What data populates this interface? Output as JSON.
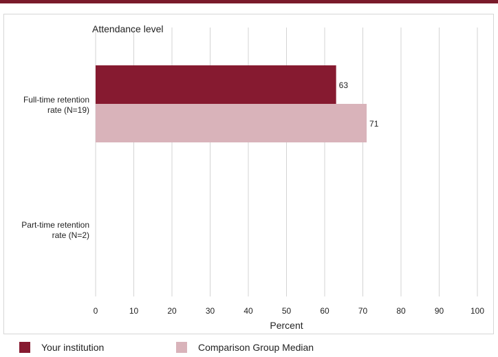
{
  "chart_data": {
    "type": "bar",
    "orientation": "horizontal",
    "title": "Attendance level",
    "xlabel": "Percent",
    "ylabel": "",
    "categories": [
      "Full-time retention rate (N=19)",
      "Part-time retention rate (N=2)"
    ],
    "category_lines": [
      [
        "Full-time retention",
        "rate (N=19)"
      ],
      [
        "Part-time retention",
        "rate (N=2)"
      ]
    ],
    "series": [
      {
        "name": "Your institution",
        "values": [
          63,
          null
        ],
        "color": "#861a30"
      },
      {
        "name": "Comparison Group Median",
        "values": [
          71,
          null
        ],
        "color": "#d9b3ba"
      }
    ],
    "xlim": [
      0,
      100
    ],
    "xticks": [
      0,
      10,
      20,
      30,
      40,
      50,
      60,
      70,
      80,
      90,
      100
    ],
    "grid": true,
    "legend_position": "bottom"
  },
  "colors": {
    "accent": "#7a1a2b",
    "grid": "#d3d3d3",
    "text": "#222222"
  }
}
